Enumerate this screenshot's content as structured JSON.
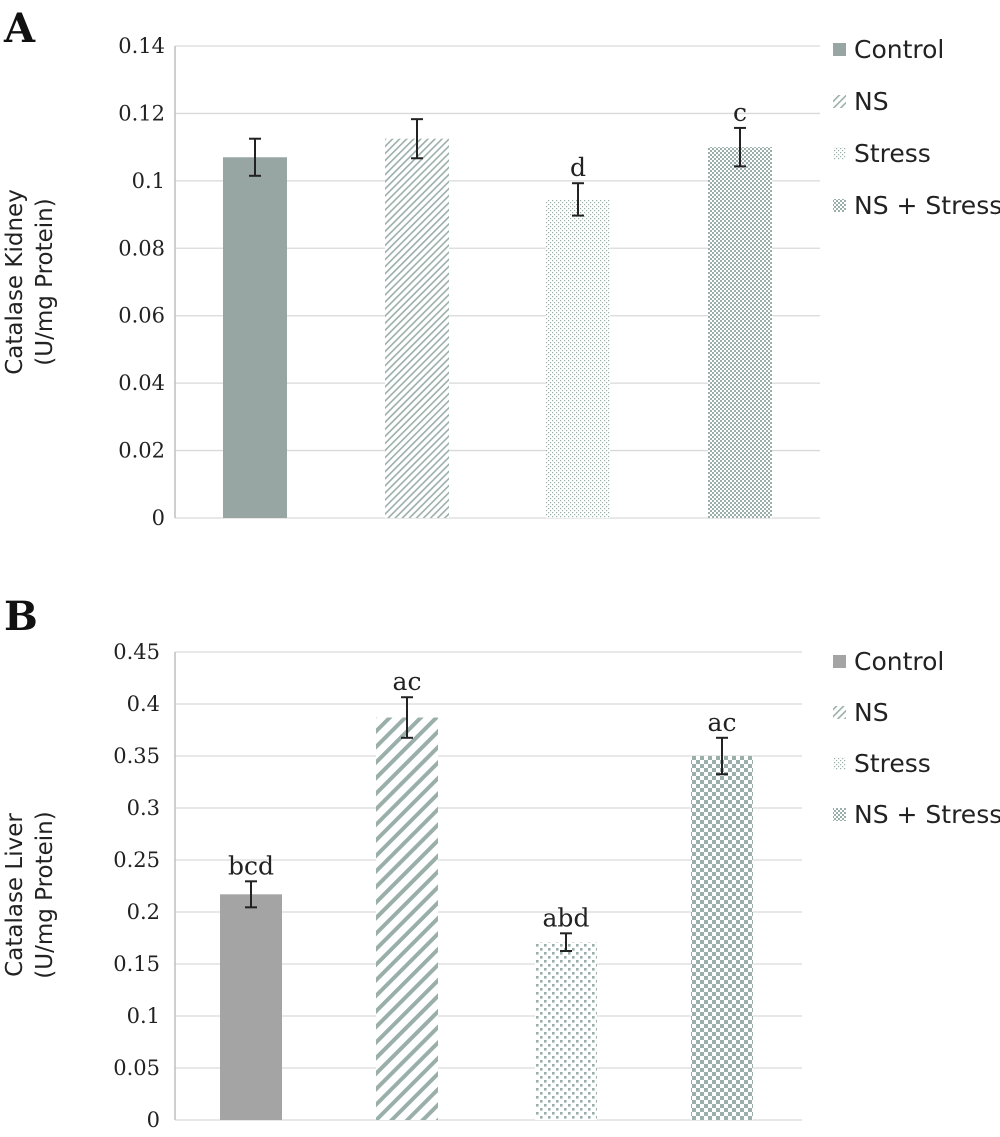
{
  "colors": {
    "control_a": "#97a5a3",
    "control_b": "#a4a4a4",
    "pattern_fg": "#9bafaa",
    "pattern_bg": "#ffffff",
    "grid": "#d9d9d9",
    "text": "#222222"
  },
  "chart_data": [
    {
      "type": "bar",
      "panel": "A",
      "title": "",
      "xlabel": "",
      "ylabel": [
        "Catalase Kidney",
        "(U/mg Protein)"
      ],
      "ylim": [
        0,
        0.14
      ],
      "yticks": [
        0,
        0.02,
        0.04,
        0.06,
        0.08,
        0.1,
        0.12,
        0.14
      ],
      "ytick_labels": [
        "0",
        "0.02",
        "0.04",
        "0.06",
        "0.08",
        "0.1",
        "0.12",
        "0.14"
      ],
      "grid": true,
      "legend_position": "right",
      "categories": [
        "Control",
        "NS",
        "Stress",
        "NS + Stress"
      ],
      "values": [
        0.107,
        0.1125,
        0.0945,
        0.11
      ],
      "errors": [
        0.0055,
        0.0058,
        0.0048,
        0.0057
      ],
      "annotations": [
        "",
        "",
        "d",
        "c"
      ],
      "series": [
        {
          "name": "Control",
          "pattern": "solid"
        },
        {
          "name": "NS",
          "pattern": "diagonal"
        },
        {
          "name": "Stress",
          "pattern": "dots"
        },
        {
          "name": "NS + Stress",
          "pattern": "checker"
        }
      ]
    },
    {
      "type": "bar",
      "panel": "B",
      "title": "",
      "xlabel": "",
      "ylabel": [
        "Catalase Liver",
        "(U/mg Protein)"
      ],
      "ylim": [
        0,
        0.45
      ],
      "yticks": [
        0,
        0.05,
        0.1,
        0.15,
        0.2,
        0.25,
        0.3,
        0.35,
        0.4,
        0.45
      ],
      "ytick_labels": [
        "0",
        "0.05",
        "0.1",
        "0.15",
        "0.2",
        "0.25",
        "0.3",
        "0.35",
        "0.4",
        "0.45"
      ],
      "grid": true,
      "legend_position": "right",
      "categories": [
        "Control",
        "NS",
        "Stress",
        "NS + Stress"
      ],
      "values": [
        0.217,
        0.387,
        0.171,
        0.35
      ],
      "errors": [
        0.0125,
        0.0195,
        0.0085,
        0.0175
      ],
      "annotations": [
        "bcd",
        "ac",
        "abd",
        "ac"
      ],
      "series": [
        {
          "name": "Control",
          "pattern": "solid"
        },
        {
          "name": "NS",
          "pattern": "diagonal"
        },
        {
          "name": "Stress",
          "pattern": "dots"
        },
        {
          "name": "NS + Stress",
          "pattern": "checker"
        }
      ]
    }
  ]
}
